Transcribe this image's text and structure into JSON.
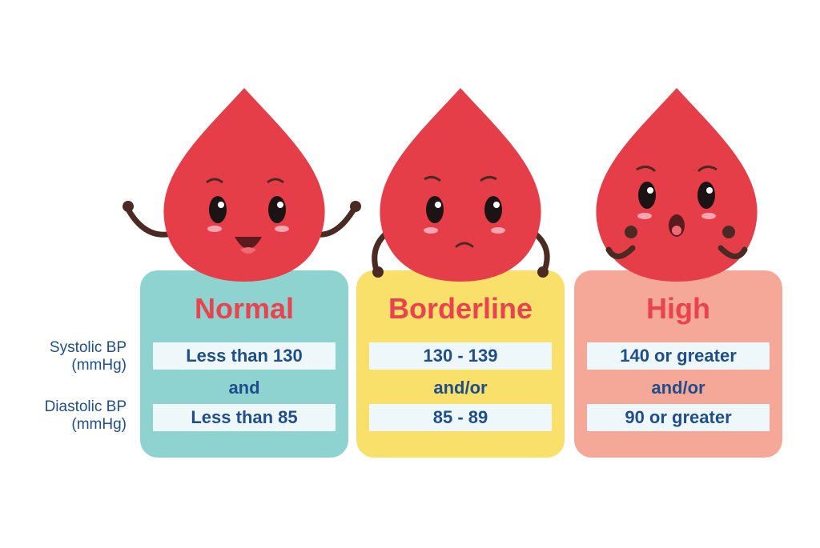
{
  "row_labels": {
    "systolic": [
      "Systolic BP",
      "(mmHg)"
    ],
    "diastolic": [
      "Diastolic BP",
      "(mmHg)"
    ]
  },
  "categories": [
    {
      "title": "Normal",
      "systolic": "Less than 130",
      "connector": "and",
      "diastolic": "Less than 85",
      "card_color": "#8ed3cf",
      "expression": "happy"
    },
    {
      "title": "Borderline",
      "systolic": "130 - 139",
      "connector": "and/or",
      "diastolic": "85 - 89",
      "card_color": "#f8e06a",
      "expression": "worried"
    },
    {
      "title": "High",
      "systolic": "140 or greater",
      "connector": "and/or",
      "diastolic": "90 or greater",
      "card_color": "#f6a898",
      "expression": "shocked"
    }
  ],
  "colors": {
    "title": "#e8434f",
    "text": "#1f4e8a",
    "drop": "#e53e48",
    "value_box": "#eef8fb"
  }
}
